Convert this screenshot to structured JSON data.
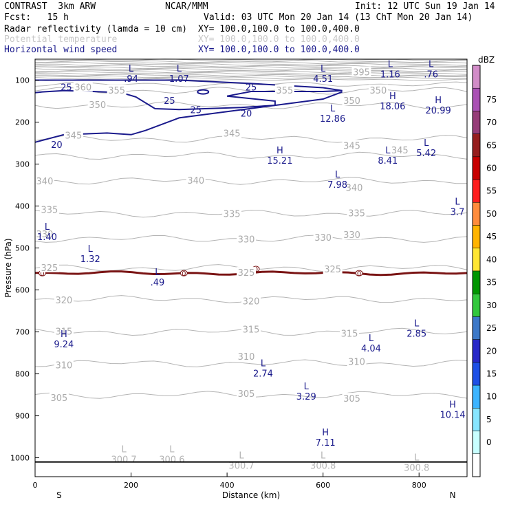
{
  "header": {
    "model": "CONTRAST  3km ARW",
    "org": "NCAR/MMM",
    "init": "Init: 12 UTC Sun 19 Jan 14",
    "fcst": "Fcst:   15 h",
    "valid": "Valid: 03 UTC Mon 20 Jan 14 (13 ChT Mon 20 Jan 14)",
    "fields": [
      {
        "name": "Radar reflectivity (lamda = 10 cm)",
        "xy": "XY= 100.0,100.0 to 100.0,400.0",
        "color": "#000000"
      },
      {
        "name": "Potential temperature",
        "xy": "XY= 100.0,100.0 to 100.0,400.0",
        "color": "#c8c8c8"
      },
      {
        "name": "Horizontal wind speed",
        "xy": "XY= 100.0,100.0 to 100.0,400.0",
        "color": "#1a1a8c"
      }
    ]
  },
  "chart_data": {
    "type": "contour",
    "xlabel": "Distance (km)",
    "ylabel": "Pressure (hPa)",
    "xlim": [
      0,
      900
    ],
    "ylim": [
      1045,
      50
    ],
    "x_ticks": [
      0,
      200,
      400,
      600,
      800
    ],
    "y_ticks": [
      100,
      200,
      300,
      400,
      500,
      600,
      700,
      800,
      900,
      1000
    ],
    "x_end_labels": {
      "left": "S",
      "right": "N"
    },
    "colorbar": {
      "title": "dBZ",
      "levels": [
        0,
        5,
        10,
        15,
        20,
        25,
        30,
        35,
        40,
        45,
        50,
        55,
        60,
        65,
        70,
        75
      ],
      "colors": [
        "#ffffff",
        "#c8ffff",
        "#87e6ff",
        "#3cb4ff",
        "#1e50e6",
        "#2828c8",
        "#3c78c8",
        "#32c83c",
        "#009600",
        "#ffe632",
        "#ffb400",
        "#ff8c3c",
        "#ff1e1e",
        "#c80000",
        "#961e1e",
        "#963c78",
        "#aa50b4",
        "#d28cc8"
      ]
    },
    "theta_contours": [
      {
        "value": 350,
        "label": "350",
        "p": 160
      },
      {
        "value": 345,
        "label": "345",
        "p": 240
      },
      {
        "value": 340,
        "label": "340",
        "p": 340
      },
      {
        "value": 335,
        "label": "335",
        "p": 418
      },
      {
        "value": 330,
        "label": "330",
        "p": 478
      },
      {
        "value": 325,
        "label": "325",
        "p": 548
      },
      {
        "value": 320,
        "label": "320",
        "p": 622
      },
      {
        "value": 315,
        "label": "315",
        "p": 700
      },
      {
        "value": 310,
        "label": "310",
        "p": 775
      },
      {
        "value": 305,
        "label": "305",
        "p": 850
      }
    ],
    "theta_labels": [
      {
        "text": "395",
        "x": 680,
        "p": 82
      },
      {
        "text": "360",
        "x": 100,
        "p": 118
      },
      {
        "text": "355",
        "x": 170,
        "p": 125
      },
      {
        "text": "355",
        "x": 520,
        "p": 125
      },
      {
        "text": "350",
        "x": 715,
        "p": 125
      },
      {
        "text": "350",
        "x": 130,
        "p": 160
      },
      {
        "text": "350",
        "x": 660,
        "p": 150
      },
      {
        "text": "345",
        "x": 80,
        "p": 233
      },
      {
        "text": "345",
        "x": 410,
        "p": 228
      },
      {
        "text": "345",
        "x": 660,
        "p": 257
      },
      {
        "text": "345",
        "x": 760,
        "p": 268
      },
      {
        "text": "340",
        "x": 20,
        "p": 342
      },
      {
        "text": "340",
        "x": 335,
        "p": 340
      },
      {
        "text": "340",
        "x": 665,
        "p": 357
      },
      {
        "text": "335",
        "x": 30,
        "p": 410
      },
      {
        "text": "335",
        "x": 410,
        "p": 420
      },
      {
        "text": "335",
        "x": 670,
        "p": 418
      },
      {
        "text": "330",
        "x": 20,
        "p": 468
      },
      {
        "text": "330",
        "x": 440,
        "p": 480
      },
      {
        "text": "330",
        "x": 600,
        "p": 476
      },
      {
        "text": "330",
        "x": 660,
        "p": 470
      },
      {
        "text": "325",
        "x": 30,
        "p": 548
      },
      {
        "text": "325",
        "x": 440,
        "p": 560
      },
      {
        "text": "325",
        "x": 620,
        "p": 552
      },
      {
        "text": "320",
        "x": 60,
        "p": 625
      },
      {
        "text": "320",
        "x": 450,
        "p": 628
      },
      {
        "text": "315",
        "x": 60,
        "p": 700
      },
      {
        "text": "315",
        "x": 450,
        "p": 695
      },
      {
        "text": "315",
        "x": 655,
        "p": 705
      },
      {
        "text": "310",
        "x": 60,
        "p": 780
      },
      {
        "text": "310",
        "x": 440,
        "p": 760
      },
      {
        "text": "310",
        "x": 670,
        "p": 772
      },
      {
        "text": "305",
        "x": 50,
        "p": 858
      },
      {
        "text": "305",
        "x": 440,
        "p": 848
      },
      {
        "text": "305",
        "x": 660,
        "p": 860
      }
    ],
    "wind_contours": [
      {
        "value": 25,
        "label": "25"
      },
      {
        "value": 20,
        "label": "20"
      }
    ],
    "wind_labels": [
      {
        "text": "25",
        "x": 65,
        "p": 118
      },
      {
        "text": "25",
        "x": 450,
        "p": 118
      },
      {
        "text": "25",
        "x": 280,
        "p": 150
      },
      {
        "text": "25",
        "x": 335,
        "p": 172
      },
      {
        "text": "20",
        "x": 440,
        "p": 180
      },
      {
        "text": "20",
        "x": 45,
        "p": 255
      }
    ],
    "zero_dbz_label": "0",
    "zero_dbz_marks": [
      {
        "x": 15,
        "p": 560
      },
      {
        "x": 310,
        "p": 560
      },
      {
        "x": 460,
        "p": 550
      },
      {
        "x": 675,
        "p": 560
      }
    ],
    "extrema": [
      {
        "type": "L",
        "value": ".94",
        "x": 200,
        "p": 93,
        "color": "#1a1a8c"
      },
      {
        "type": "L",
        "value": "1.07",
        "x": 300,
        "p": 93,
        "color": "#1a1a8c"
      },
      {
        "type": "L",
        "value": "4.51",
        "x": 600,
        "p": 93,
        "color": "#1a1a8c"
      },
      {
        "type": "L",
        "value": "1.16",
        "x": 740,
        "p": 82,
        "color": "#1a1a8c"
      },
      {
        "type": "L",
        "value": ".76",
        "x": 825,
        "p": 82,
        "color": "#1a1a8c"
      },
      {
        "type": "H",
        "value": "18.06",
        "x": 745,
        "p": 158,
        "color": "#1a1a8c"
      },
      {
        "type": "H",
        "value": "20.99",
        "x": 840,
        "p": 168,
        "color": "#1a1a8c"
      },
      {
        "type": "L",
        "value": "12.86",
        "x": 620,
        "p": 188,
        "color": "#1a1a8c"
      },
      {
        "type": "H",
        "value": "15.21",
        "x": 510,
        "p": 288,
        "color": "#1a1a8c"
      },
      {
        "type": "L",
        "value": "8.41",
        "x": 735,
        "p": 288,
        "color": "#1a1a8c"
      },
      {
        "type": "L",
        "value": "5.42",
        "x": 815,
        "p": 270,
        "color": "#1a1a8c"
      },
      {
        "type": "L",
        "value": "7.98",
        "x": 630,
        "p": 345,
        "color": "#1a1a8c"
      },
      {
        "type": "L",
        "value": "3.7",
        "x": 880,
        "p": 410,
        "color": "#1a1a8c"
      },
      {
        "type": "L",
        "value": "1.40",
        "x": 25,
        "p": 470,
        "color": "#1a1a8c"
      },
      {
        "type": "L",
        "value": "1.32",
        "x": 115,
        "p": 522,
        "color": "#1a1a8c"
      },
      {
        "type": "L",
        "value": ".49",
        "x": 255,
        "p": 578,
        "color": "#1a1a8c"
      },
      {
        "type": "L",
        "value": "2.85",
        "x": 795,
        "p": 700,
        "color": "#1a1a8c"
      },
      {
        "type": "H",
        "value": "9.24",
        "x": 60,
        "p": 725,
        "color": "#1a1a8c"
      },
      {
        "type": "L",
        "value": "4.04",
        "x": 700,
        "p": 735,
        "color": "#1a1a8c"
      },
      {
        "type": "L",
        "value": "2.74",
        "x": 475,
        "p": 795,
        "color": "#1a1a8c"
      },
      {
        "type": "L",
        "value": "3.29",
        "x": 565,
        "p": 850,
        "color": "#1a1a8c"
      },
      {
        "type": "H",
        "value": "10.14",
        "x": 870,
        "p": 893,
        "color": "#1a1a8c"
      },
      {
        "type": "H",
        "value": "7.11",
        "x": 605,
        "p": 960,
        "color": "#1a1a8c"
      },
      {
        "type": "L",
        "value": "300.7",
        "x": 185,
        "p": 1000,
        "color": "#b4b4b4"
      },
      {
        "type": "L",
        "value": "300.6",
        "x": 285,
        "p": 1000,
        "color": "#b4b4b4"
      },
      {
        "type": "L",
        "value": "300.7",
        "x": 430,
        "p": 1015,
        "color": "#b4b4b4"
      },
      {
        "type": "L",
        "value": "300.8",
        "x": 600,
        "p": 1015,
        "color": "#b4b4b4"
      },
      {
        "type": "L",
        "value": "300.8",
        "x": 795,
        "p": 1020,
        "color": "#b4b4b4"
      }
    ],
    "surface_p": 1010
  }
}
